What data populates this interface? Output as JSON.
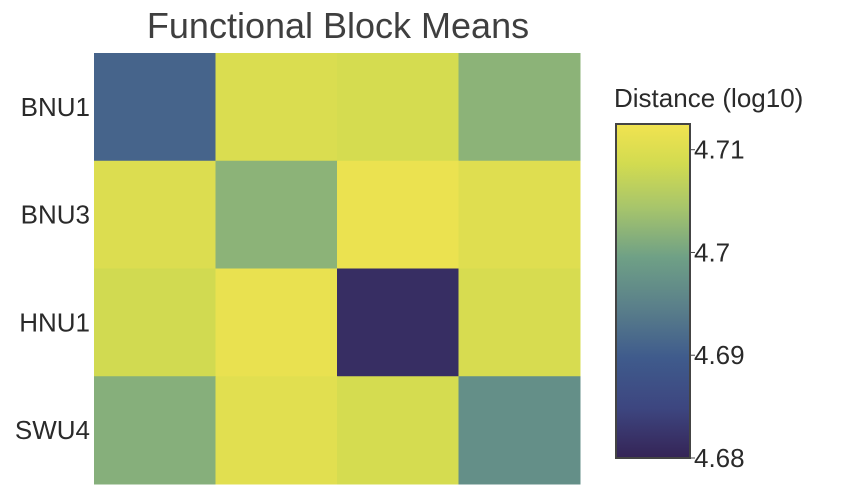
{
  "chart_data": {
    "type": "heatmap",
    "title": "Functional Block Means",
    "rows": [
      "BNU1",
      "BNU3",
      "HNU1",
      "SWU4"
    ],
    "columns": [
      "",
      "",
      "",
      ""
    ],
    "values": [
      [
        4.691,
        4.7096,
        4.709,
        4.702
      ],
      [
        4.7098,
        4.702,
        4.7118,
        4.7102
      ],
      [
        4.7085,
        4.7115,
        4.6815,
        4.7092
      ],
      [
        4.7015,
        4.7105,
        4.709,
        4.697
      ]
    ],
    "colorbar": {
      "title": "Distance (log10)",
      "range": [
        4.68,
        4.7125
      ],
      "ticks": [
        4.68,
        4.69,
        4.7,
        4.71
      ],
      "tick_labels": [
        "4.68",
        "4.69",
        "4.7",
        "4.71"
      ],
      "colorscale": "viridis"
    }
  }
}
